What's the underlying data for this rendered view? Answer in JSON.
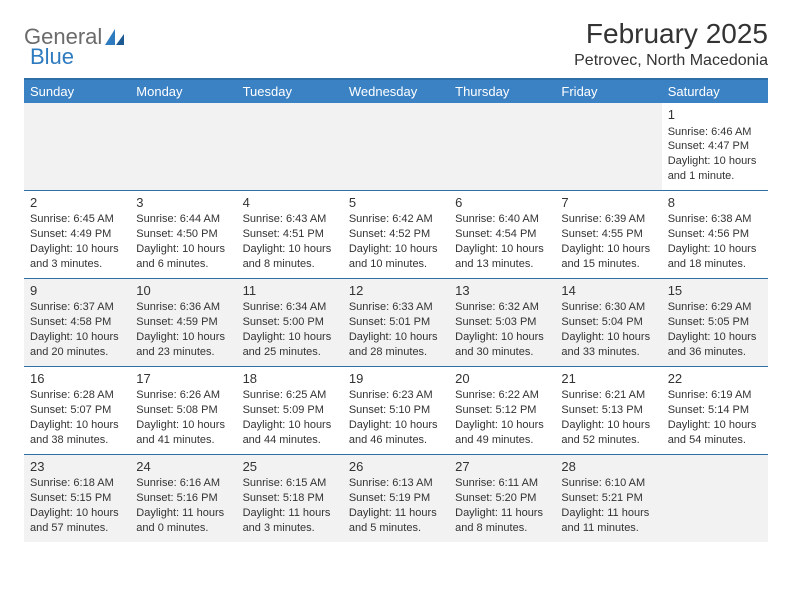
{
  "logo": {
    "text_general": "General",
    "text_blue": "Blue"
  },
  "title": "February 2025",
  "location": "Petrovec, North Macedonia",
  "colors": {
    "header_bg": "#3b82c4",
    "header_border": "#2f6fa8",
    "row_border": "#2f6fa8",
    "shaded_bg": "#f2f2f2",
    "text": "#333333",
    "logo_gray": "#6b6b6b",
    "logo_blue": "#2f7bbf"
  },
  "weekdays": [
    "Sunday",
    "Monday",
    "Tuesday",
    "Wednesday",
    "Thursday",
    "Friday",
    "Saturday"
  ],
  "rows": [
    {
      "shaded": false,
      "cells": [
        {
          "day": "",
          "sunrise": "",
          "sunset": "",
          "daylight1": "",
          "daylight2": ""
        },
        {
          "day": "",
          "sunrise": "",
          "sunset": "",
          "daylight1": "",
          "daylight2": ""
        },
        {
          "day": "",
          "sunrise": "",
          "sunset": "",
          "daylight1": "",
          "daylight2": ""
        },
        {
          "day": "",
          "sunrise": "",
          "sunset": "",
          "daylight1": "",
          "daylight2": ""
        },
        {
          "day": "",
          "sunrise": "",
          "sunset": "",
          "daylight1": "",
          "daylight2": ""
        },
        {
          "day": "",
          "sunrise": "",
          "sunset": "",
          "daylight1": "",
          "daylight2": ""
        },
        {
          "day": "1",
          "sunrise": "Sunrise: 6:46 AM",
          "sunset": "Sunset: 4:47 PM",
          "daylight1": "Daylight: 10 hours",
          "daylight2": "and 1 minute."
        }
      ]
    },
    {
      "shaded": false,
      "cells": [
        {
          "day": "2",
          "sunrise": "Sunrise: 6:45 AM",
          "sunset": "Sunset: 4:49 PM",
          "daylight1": "Daylight: 10 hours",
          "daylight2": "and 3 minutes."
        },
        {
          "day": "3",
          "sunrise": "Sunrise: 6:44 AM",
          "sunset": "Sunset: 4:50 PM",
          "daylight1": "Daylight: 10 hours",
          "daylight2": "and 6 minutes."
        },
        {
          "day": "4",
          "sunrise": "Sunrise: 6:43 AM",
          "sunset": "Sunset: 4:51 PM",
          "daylight1": "Daylight: 10 hours",
          "daylight2": "and 8 minutes."
        },
        {
          "day": "5",
          "sunrise": "Sunrise: 6:42 AM",
          "sunset": "Sunset: 4:52 PM",
          "daylight1": "Daylight: 10 hours",
          "daylight2": "and 10 minutes."
        },
        {
          "day": "6",
          "sunrise": "Sunrise: 6:40 AM",
          "sunset": "Sunset: 4:54 PM",
          "daylight1": "Daylight: 10 hours",
          "daylight2": "and 13 minutes."
        },
        {
          "day": "7",
          "sunrise": "Sunrise: 6:39 AM",
          "sunset": "Sunset: 4:55 PM",
          "daylight1": "Daylight: 10 hours",
          "daylight2": "and 15 minutes."
        },
        {
          "day": "8",
          "sunrise": "Sunrise: 6:38 AM",
          "sunset": "Sunset: 4:56 PM",
          "daylight1": "Daylight: 10 hours",
          "daylight2": "and 18 minutes."
        }
      ]
    },
    {
      "shaded": true,
      "cells": [
        {
          "day": "9",
          "sunrise": "Sunrise: 6:37 AM",
          "sunset": "Sunset: 4:58 PM",
          "daylight1": "Daylight: 10 hours",
          "daylight2": "and 20 minutes."
        },
        {
          "day": "10",
          "sunrise": "Sunrise: 6:36 AM",
          "sunset": "Sunset: 4:59 PM",
          "daylight1": "Daylight: 10 hours",
          "daylight2": "and 23 minutes."
        },
        {
          "day": "11",
          "sunrise": "Sunrise: 6:34 AM",
          "sunset": "Sunset: 5:00 PM",
          "daylight1": "Daylight: 10 hours",
          "daylight2": "and 25 minutes."
        },
        {
          "day": "12",
          "sunrise": "Sunrise: 6:33 AM",
          "sunset": "Sunset: 5:01 PM",
          "daylight1": "Daylight: 10 hours",
          "daylight2": "and 28 minutes."
        },
        {
          "day": "13",
          "sunrise": "Sunrise: 6:32 AM",
          "sunset": "Sunset: 5:03 PM",
          "daylight1": "Daylight: 10 hours",
          "daylight2": "and 30 minutes."
        },
        {
          "day": "14",
          "sunrise": "Sunrise: 6:30 AM",
          "sunset": "Sunset: 5:04 PM",
          "daylight1": "Daylight: 10 hours",
          "daylight2": "and 33 minutes."
        },
        {
          "day": "15",
          "sunrise": "Sunrise: 6:29 AM",
          "sunset": "Sunset: 5:05 PM",
          "daylight1": "Daylight: 10 hours",
          "daylight2": "and 36 minutes."
        }
      ]
    },
    {
      "shaded": false,
      "cells": [
        {
          "day": "16",
          "sunrise": "Sunrise: 6:28 AM",
          "sunset": "Sunset: 5:07 PM",
          "daylight1": "Daylight: 10 hours",
          "daylight2": "and 38 minutes."
        },
        {
          "day": "17",
          "sunrise": "Sunrise: 6:26 AM",
          "sunset": "Sunset: 5:08 PM",
          "daylight1": "Daylight: 10 hours",
          "daylight2": "and 41 minutes."
        },
        {
          "day": "18",
          "sunrise": "Sunrise: 6:25 AM",
          "sunset": "Sunset: 5:09 PM",
          "daylight1": "Daylight: 10 hours",
          "daylight2": "and 44 minutes."
        },
        {
          "day": "19",
          "sunrise": "Sunrise: 6:23 AM",
          "sunset": "Sunset: 5:10 PM",
          "daylight1": "Daylight: 10 hours",
          "daylight2": "and 46 minutes."
        },
        {
          "day": "20",
          "sunrise": "Sunrise: 6:22 AM",
          "sunset": "Sunset: 5:12 PM",
          "daylight1": "Daylight: 10 hours",
          "daylight2": "and 49 minutes."
        },
        {
          "day": "21",
          "sunrise": "Sunrise: 6:21 AM",
          "sunset": "Sunset: 5:13 PM",
          "daylight1": "Daylight: 10 hours",
          "daylight2": "and 52 minutes."
        },
        {
          "day": "22",
          "sunrise": "Sunrise: 6:19 AM",
          "sunset": "Sunset: 5:14 PM",
          "daylight1": "Daylight: 10 hours",
          "daylight2": "and 54 minutes."
        }
      ]
    },
    {
      "shaded": true,
      "cells": [
        {
          "day": "23",
          "sunrise": "Sunrise: 6:18 AM",
          "sunset": "Sunset: 5:15 PM",
          "daylight1": "Daylight: 10 hours",
          "daylight2": "and 57 minutes."
        },
        {
          "day": "24",
          "sunrise": "Sunrise: 6:16 AM",
          "sunset": "Sunset: 5:16 PM",
          "daylight1": "Daylight: 11 hours",
          "daylight2": "and 0 minutes."
        },
        {
          "day": "25",
          "sunrise": "Sunrise: 6:15 AM",
          "sunset": "Sunset: 5:18 PM",
          "daylight1": "Daylight: 11 hours",
          "daylight2": "and 3 minutes."
        },
        {
          "day": "26",
          "sunrise": "Sunrise: 6:13 AM",
          "sunset": "Sunset: 5:19 PM",
          "daylight1": "Daylight: 11 hours",
          "daylight2": "and 5 minutes."
        },
        {
          "day": "27",
          "sunrise": "Sunrise: 6:11 AM",
          "sunset": "Sunset: 5:20 PM",
          "daylight1": "Daylight: 11 hours",
          "daylight2": "and 8 minutes."
        },
        {
          "day": "28",
          "sunrise": "Sunrise: 6:10 AM",
          "sunset": "Sunset: 5:21 PM",
          "daylight1": "Daylight: 11 hours",
          "daylight2": "and 11 minutes."
        },
        {
          "day": "",
          "sunrise": "",
          "sunset": "",
          "daylight1": "",
          "daylight2": ""
        }
      ]
    }
  ]
}
